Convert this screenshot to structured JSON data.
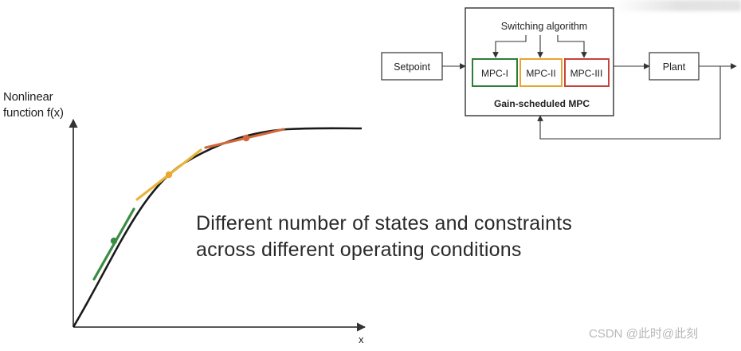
{
  "plot": {
    "y_axis_label_line1": "Nonlinear",
    "y_axis_label_line2": "function f(x)",
    "x_axis_label": "x"
  },
  "caption": {
    "line1": "Different number of states and constraints",
    "line2": "across different operating conditions"
  },
  "block_diagram": {
    "setpoint": "Setpoint",
    "switching": "Switching algorithm",
    "mpc1": "MPC-I",
    "mpc2": "MPC-II",
    "mpc3": "MPC-III",
    "controller": "Gain-scheduled MPC",
    "plant": "Plant"
  },
  "colors": {
    "mpc1": "#2e7d3a",
    "mpc2": "#e8a431",
    "mpc3": "#c8423c",
    "segment_green": "#3a8c43",
    "segment_yellow": "#e9b43a",
    "segment_orange": "#d0683a"
  },
  "watermark": "CSDN @此时@此刻"
}
